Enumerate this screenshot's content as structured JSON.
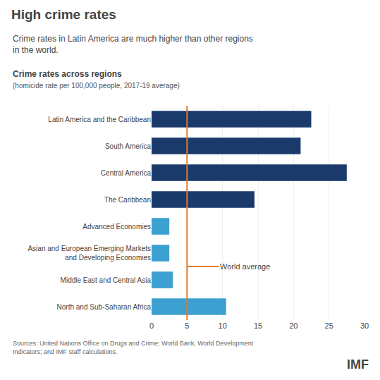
{
  "chart_data": {
    "type": "bar",
    "orientation": "horizontal",
    "title": "High crime rates",
    "subtitle": "Crime rates in Latin America are much higher than other regions\nin the world.",
    "annotations": [
      "Crime rates across regions",
      "(homicide rate per 100,000 people, 2017-19 average)",
      "Sources: United Nations Office on Drugs and Crime; World Bank, World Development\nIndicators; and IMF staff calculations.",
      "IMF"
    ],
    "categories": [
      "Latin America and the Caribbean",
      "South America",
      "Central America",
      "The Caribbean",
      "Advanced Economies",
      "Asian and European Emerging Markets\nand Developing Economies",
      "Middle East and Central Asia",
      "North and Sub-Saharan Africa"
    ],
    "values": [
      22.5,
      21.0,
      27.5,
      14.5,
      2.5,
      2.5,
      3.0,
      10.5
    ],
    "colors": [
      "#1a3a6b",
      "#1a3a6b",
      "#1a3a6b",
      "#1a3a6b",
      "#3ca0d0",
      "#3ca0d0",
      "#3ca0d0",
      "#3ca0d0"
    ],
    "reference_line": {
      "value": 5.0,
      "label": "World average",
      "color": "#e07b2a"
    },
    "xlim": [
      0,
      30
    ],
    "xticks": [
      0,
      5,
      10,
      15,
      20,
      25,
      30
    ],
    "grid": true
  }
}
